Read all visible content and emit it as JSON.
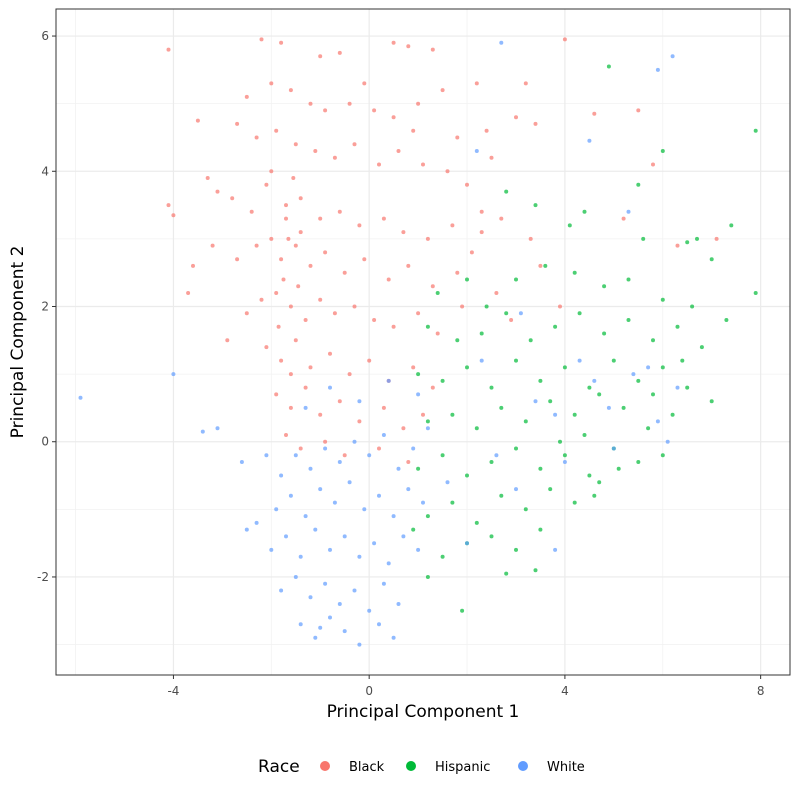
{
  "chart_data": {
    "type": "scatter",
    "title": "",
    "xlabel": "Principal Component 1",
    "ylabel": "Principal Component 2",
    "xlim": [
      -6.4,
      8.6
    ],
    "ylim": [
      -3.45,
      6.4
    ],
    "xticks": [
      -4,
      0,
      4,
      8
    ],
    "yticks": [
      -2,
      0,
      2,
      4,
      6
    ],
    "xtick_labels": [
      "-4",
      "0",
      "4",
      "8"
    ],
    "ytick_labels": [
      "-2",
      "0",
      "2",
      "4",
      "6"
    ],
    "grid": true,
    "legend": {
      "title": "Race",
      "position": "bottom"
    },
    "series": [
      {
        "name": "Black",
        "color": "#F8766D",
        "points": [
          [
            -2.2,
            5.95
          ],
          [
            -4.1,
            5.8
          ],
          [
            -1.8,
            5.9
          ],
          [
            -1.0,
            5.7
          ],
          [
            -0.6,
            5.75
          ],
          [
            0.5,
            5.9
          ],
          [
            0.8,
            5.85
          ],
          [
            1.3,
            5.8
          ],
          [
            -2.5,
            5.1
          ],
          [
            -2.0,
            5.3
          ],
          [
            -1.6,
            5.2
          ],
          [
            -1.2,
            5.0
          ],
          [
            -0.9,
            4.9
          ],
          [
            -0.4,
            5.0
          ],
          [
            0.1,
            4.9
          ],
          [
            0.5,
            4.8
          ],
          [
            1.0,
            5.0
          ],
          [
            1.5,
            5.2
          ],
          [
            2.2,
            5.3
          ],
          [
            3.2,
            5.3
          ],
          [
            4.0,
            5.95
          ],
          [
            4.6,
            4.85
          ],
          [
            5.5,
            4.9
          ],
          [
            3.0,
            4.8
          ],
          [
            3.4,
            4.7
          ],
          [
            2.4,
            4.6
          ],
          [
            1.8,
            4.5
          ],
          [
            -3.5,
            4.75
          ],
          [
            -2.7,
            4.7
          ],
          [
            -2.3,
            4.5
          ],
          [
            -1.9,
            4.6
          ],
          [
            -1.5,
            4.4
          ],
          [
            -1.1,
            4.3
          ],
          [
            -0.7,
            4.2
          ],
          [
            -0.3,
            4.4
          ],
          [
            0.2,
            4.1
          ],
          [
            0.6,
            4.3
          ],
          [
            1.1,
            4.1
          ],
          [
            1.6,
            4.0
          ],
          [
            2.0,
            3.8
          ],
          [
            2.5,
            4.2
          ],
          [
            -3.3,
            3.9
          ],
          [
            -3.1,
            3.7
          ],
          [
            -2.8,
            3.6
          ],
          [
            -2.4,
            3.4
          ],
          [
            -2.1,
            3.8
          ],
          [
            -1.7,
            3.5
          ],
          [
            -1.4,
            3.6
          ],
          [
            -1.0,
            3.3
          ],
          [
            -0.6,
            3.4
          ],
          [
            -0.2,
            3.2
          ],
          [
            0.3,
            3.3
          ],
          [
            0.7,
            3.1
          ],
          [
            1.2,
            3.0
          ],
          [
            1.7,
            3.2
          ],
          [
            2.3,
            3.1
          ],
          [
            2.7,
            3.3
          ],
          [
            3.3,
            3.0
          ],
          [
            -4.1,
            3.5
          ],
          [
            -4.0,
            3.35
          ],
          [
            -3.6,
            2.6
          ],
          [
            -3.2,
            2.9
          ],
          [
            -2.7,
            2.7
          ],
          [
            -2.3,
            2.9
          ],
          [
            -2.0,
            3.0
          ],
          [
            -1.8,
            2.7
          ],
          [
            -1.5,
            2.9
          ],
          [
            -1.2,
            2.6
          ],
          [
            -0.9,
            2.8
          ],
          [
            -0.5,
            2.5
          ],
          [
            -0.1,
            2.7
          ],
          [
            0.4,
            2.4
          ],
          [
            0.8,
            2.6
          ],
          [
            1.3,
            2.3
          ],
          [
            1.8,
            2.5
          ],
          [
            2.1,
            2.8
          ],
          [
            2.6,
            2.2
          ],
          [
            3.5,
            2.6
          ],
          [
            5.2,
            3.3
          ],
          [
            -3.7,
            2.2
          ],
          [
            -2.9,
            1.5
          ],
          [
            -2.5,
            1.9
          ],
          [
            -2.2,
            2.1
          ],
          [
            -1.9,
            2.2
          ],
          [
            -1.6,
            2.0
          ],
          [
            -1.3,
            1.8
          ],
          [
            -1.0,
            2.1
          ],
          [
            -0.7,
            1.9
          ],
          [
            -0.3,
            2.0
          ],
          [
            0.1,
            1.8
          ],
          [
            0.5,
            1.7
          ],
          [
            1.0,
            1.9
          ],
          [
            1.4,
            1.6
          ],
          [
            1.9,
            2.0
          ],
          [
            2.9,
            1.8
          ],
          [
            3.9,
            2.0
          ],
          [
            -2.1,
            1.4
          ],
          [
            -1.8,
            1.2
          ],
          [
            -1.5,
            1.5
          ],
          [
            -1.2,
            1.1
          ],
          [
            -0.8,
            1.3
          ],
          [
            -0.4,
            1.0
          ],
          [
            0.0,
            1.2
          ],
          [
            0.4,
            0.9
          ],
          [
            0.9,
            1.1
          ],
          [
            1.3,
            0.8
          ],
          [
            -1.9,
            0.7
          ],
          [
            -1.6,
            0.5
          ],
          [
            -1.3,
            0.8
          ],
          [
            -1.0,
            0.4
          ],
          [
            -0.6,
            0.6
          ],
          [
            -0.2,
            0.3
          ],
          [
            0.3,
            0.5
          ],
          [
            0.7,
            0.2
          ],
          [
            1.1,
            0.4
          ],
          [
            -1.7,
            0.1
          ],
          [
            -1.4,
            -0.1
          ],
          [
            -0.9,
            0.0
          ],
          [
            -0.5,
            -0.2
          ],
          [
            0.2,
            -0.1
          ],
          [
            0.8,
            -0.3
          ],
          [
            6.3,
            2.9
          ],
          [
            7.1,
            3.0
          ],
          [
            5.8,
            4.1
          ],
          [
            2.3,
            3.4
          ],
          [
            0.9,
            4.6
          ],
          [
            -0.1,
            5.3
          ],
          [
            -2.0,
            4.0
          ],
          [
            -1.65,
            3.0
          ],
          [
            -1.75,
            2.4
          ],
          [
            -1.55,
            3.9
          ],
          [
            -1.85,
            1.7
          ],
          [
            -1.45,
            2.3
          ],
          [
            -1.7,
            3.3
          ],
          [
            -1.6,
            1.0
          ],
          [
            -1.4,
            3.1
          ]
        ]
      },
      {
        "name": "Hispanic",
        "color": "#00BA38",
        "points": [
          [
            4.9,
            5.55
          ],
          [
            7.9,
            4.6
          ],
          [
            6.0,
            4.3
          ],
          [
            5.5,
            3.8
          ],
          [
            6.7,
            3.0
          ],
          [
            7.4,
            3.2
          ],
          [
            2.8,
            3.7
          ],
          [
            3.4,
            3.5
          ],
          [
            4.1,
            3.2
          ],
          [
            4.4,
            3.4
          ],
          [
            5.6,
            3.0
          ],
          [
            6.5,
            2.95
          ],
          [
            7.0,
            2.7
          ],
          [
            7.9,
            2.2
          ],
          [
            1.4,
            2.2
          ],
          [
            2.0,
            2.4
          ],
          [
            2.4,
            2.0
          ],
          [
            3.0,
            2.4
          ],
          [
            3.6,
            2.6
          ],
          [
            4.2,
            2.5
          ],
          [
            4.8,
            2.3
          ],
          [
            5.3,
            2.4
          ],
          [
            6.0,
            2.1
          ],
          [
            6.6,
            2.0
          ],
          [
            7.3,
            1.8
          ],
          [
            1.2,
            1.7
          ],
          [
            1.8,
            1.5
          ],
          [
            2.3,
            1.6
          ],
          [
            2.8,
            1.9
          ],
          [
            3.3,
            1.5
          ],
          [
            3.8,
            1.7
          ],
          [
            4.3,
            1.9
          ],
          [
            4.8,
            1.6
          ],
          [
            5.3,
            1.8
          ],
          [
            5.8,
            1.5
          ],
          [
            6.3,
            1.7
          ],
          [
            6.8,
            1.4
          ],
          [
            1.0,
            1.0
          ],
          [
            1.5,
            0.9
          ],
          [
            2.0,
            1.1
          ],
          [
            2.5,
            0.8
          ],
          [
            3.0,
            1.2
          ],
          [
            3.5,
            0.9
          ],
          [
            4.0,
            1.1
          ],
          [
            4.5,
            0.8
          ],
          [
            5.0,
            1.2
          ],
          [
            5.5,
            0.9
          ],
          [
            6.0,
            1.1
          ],
          [
            6.5,
            0.8
          ],
          [
            7.0,
            0.6
          ],
          [
            1.2,
            0.3
          ],
          [
            1.7,
            0.4
          ],
          [
            2.2,
            0.2
          ],
          [
            2.7,
            0.5
          ],
          [
            3.2,
            0.3
          ],
          [
            3.7,
            0.6
          ],
          [
            4.2,
            0.4
          ],
          [
            4.7,
            0.7
          ],
          [
            5.2,
            0.5
          ],
          [
            5.7,
            0.2
          ],
          [
            6.2,
            0.4
          ],
          [
            1.0,
            -0.4
          ],
          [
            1.5,
            -0.2
          ],
          [
            2.0,
            -0.5
          ],
          [
            2.5,
            -0.3
          ],
          [
            3.0,
            -0.1
          ],
          [
            3.5,
            -0.4
          ],
          [
            4.0,
            -0.2
          ],
          [
            4.5,
            -0.5
          ],
          [
            5.0,
            -0.1
          ],
          [
            5.5,
            -0.3
          ],
          [
            6.0,
            -0.2
          ],
          [
            1.2,
            -1.1
          ],
          [
            1.7,
            -0.9
          ],
          [
            2.2,
            -1.2
          ],
          [
            2.7,
            -0.8
          ],
          [
            3.2,
            -1.0
          ],
          [
            3.7,
            -0.7
          ],
          [
            4.2,
            -0.9
          ],
          [
            4.7,
            -0.6
          ],
          [
            1.5,
            -1.7
          ],
          [
            2.0,
            -1.5
          ],
          [
            2.5,
            -1.4
          ],
          [
            3.0,
            -1.6
          ],
          [
            3.5,
            -1.3
          ],
          [
            1.2,
            -2.0
          ],
          [
            2.8,
            -1.95
          ],
          [
            1.9,
            -2.5
          ],
          [
            4.6,
            -0.8
          ],
          [
            5.1,
            -0.4
          ],
          [
            3.4,
            -1.9
          ],
          [
            0.9,
            -1.3
          ],
          [
            4.4,
            0.1
          ],
          [
            5.8,
            0.7
          ],
          [
            6.4,
            1.2
          ],
          [
            3.9,
            0.0
          ]
        ]
      },
      {
        "name": "White",
        "color": "#619CFF",
        "points": [
          [
            2.7,
            5.9
          ],
          [
            6.2,
            5.7
          ],
          [
            5.9,
            5.5
          ],
          [
            4.5,
            4.45
          ],
          [
            2.2,
            4.3
          ],
          [
            5.3,
            3.4
          ],
          [
            -4.0,
            1.0
          ],
          [
            -5.9,
            0.65
          ],
          [
            -3.4,
            0.15
          ],
          [
            -3.1,
            0.2
          ],
          [
            -2.6,
            -0.3
          ],
          [
            -2.5,
            -1.3
          ],
          [
            -2.3,
            -1.2
          ],
          [
            -2.1,
            -0.2
          ],
          [
            -1.8,
            -0.5
          ],
          [
            -1.5,
            -0.2
          ],
          [
            -1.2,
            -0.4
          ],
          [
            -0.9,
            -0.1
          ],
          [
            -0.6,
            -0.3
          ],
          [
            -0.3,
            0.0
          ],
          [
            0.0,
            -0.2
          ],
          [
            0.3,
            0.1
          ],
          [
            0.6,
            -0.4
          ],
          [
            0.9,
            -0.1
          ],
          [
            1.2,
            0.2
          ],
          [
            -1.9,
            -1.0
          ],
          [
            -1.6,
            -0.8
          ],
          [
            -1.3,
            -1.1
          ],
          [
            -1.0,
            -0.7
          ],
          [
            -0.7,
            -0.9
          ],
          [
            -0.4,
            -0.6
          ],
          [
            -0.1,
            -1.0
          ],
          [
            0.2,
            -0.8
          ],
          [
            0.5,
            -1.1
          ],
          [
            0.8,
            -0.7
          ],
          [
            1.1,
            -0.9
          ],
          [
            -2.0,
            -1.6
          ],
          [
            -1.7,
            -1.4
          ],
          [
            -1.4,
            -1.7
          ],
          [
            -1.1,
            -1.3
          ],
          [
            -0.8,
            -1.6
          ],
          [
            -0.5,
            -1.4
          ],
          [
            -0.2,
            -1.7
          ],
          [
            0.1,
            -1.5
          ],
          [
            0.4,
            -1.8
          ],
          [
            0.7,
            -1.4
          ],
          [
            1.0,
            -1.6
          ],
          [
            -1.8,
            -2.2
          ],
          [
            -1.5,
            -2.0
          ],
          [
            -1.2,
            -2.3
          ],
          [
            -0.9,
            -2.1
          ],
          [
            -0.6,
            -2.4
          ],
          [
            -0.3,
            -2.2
          ],
          [
            0.0,
            -2.5
          ],
          [
            0.3,
            -2.1
          ],
          [
            0.6,
            -2.4
          ],
          [
            -1.4,
            -2.7
          ],
          [
            -1.1,
            -2.9
          ],
          [
            -0.8,
            -2.6
          ],
          [
            -0.5,
            -2.8
          ],
          [
            -0.2,
            -3.0
          ],
          [
            0.2,
            -2.7
          ],
          [
            0.5,
            -2.9
          ],
          [
            -1.0,
            -2.75
          ],
          [
            -1.3,
            0.5
          ],
          [
            -0.8,
            0.8
          ],
          [
            -0.2,
            0.6
          ],
          [
            0.4,
            0.9
          ],
          [
            1.0,
            0.7
          ],
          [
            2.3,
            1.2
          ],
          [
            3.1,
            1.9
          ],
          [
            3.8,
            0.4
          ],
          [
            4.3,
            1.2
          ],
          [
            4.9,
            0.5
          ],
          [
            5.4,
            1.0
          ],
          [
            5.9,
            0.3
          ],
          [
            6.3,
            0.8
          ],
          [
            4.0,
            -0.3
          ],
          [
            3.0,
            -0.7
          ],
          [
            5.0,
            -0.1
          ],
          [
            2.0,
            -1.5
          ],
          [
            3.8,
            -1.6
          ],
          [
            1.6,
            -0.6
          ],
          [
            4.6,
            0.9
          ],
          [
            5.7,
            1.1
          ],
          [
            6.1,
            0.0
          ],
          [
            3.4,
            0.6
          ],
          [
            2.6,
            -0.2
          ]
        ]
      }
    ]
  }
}
